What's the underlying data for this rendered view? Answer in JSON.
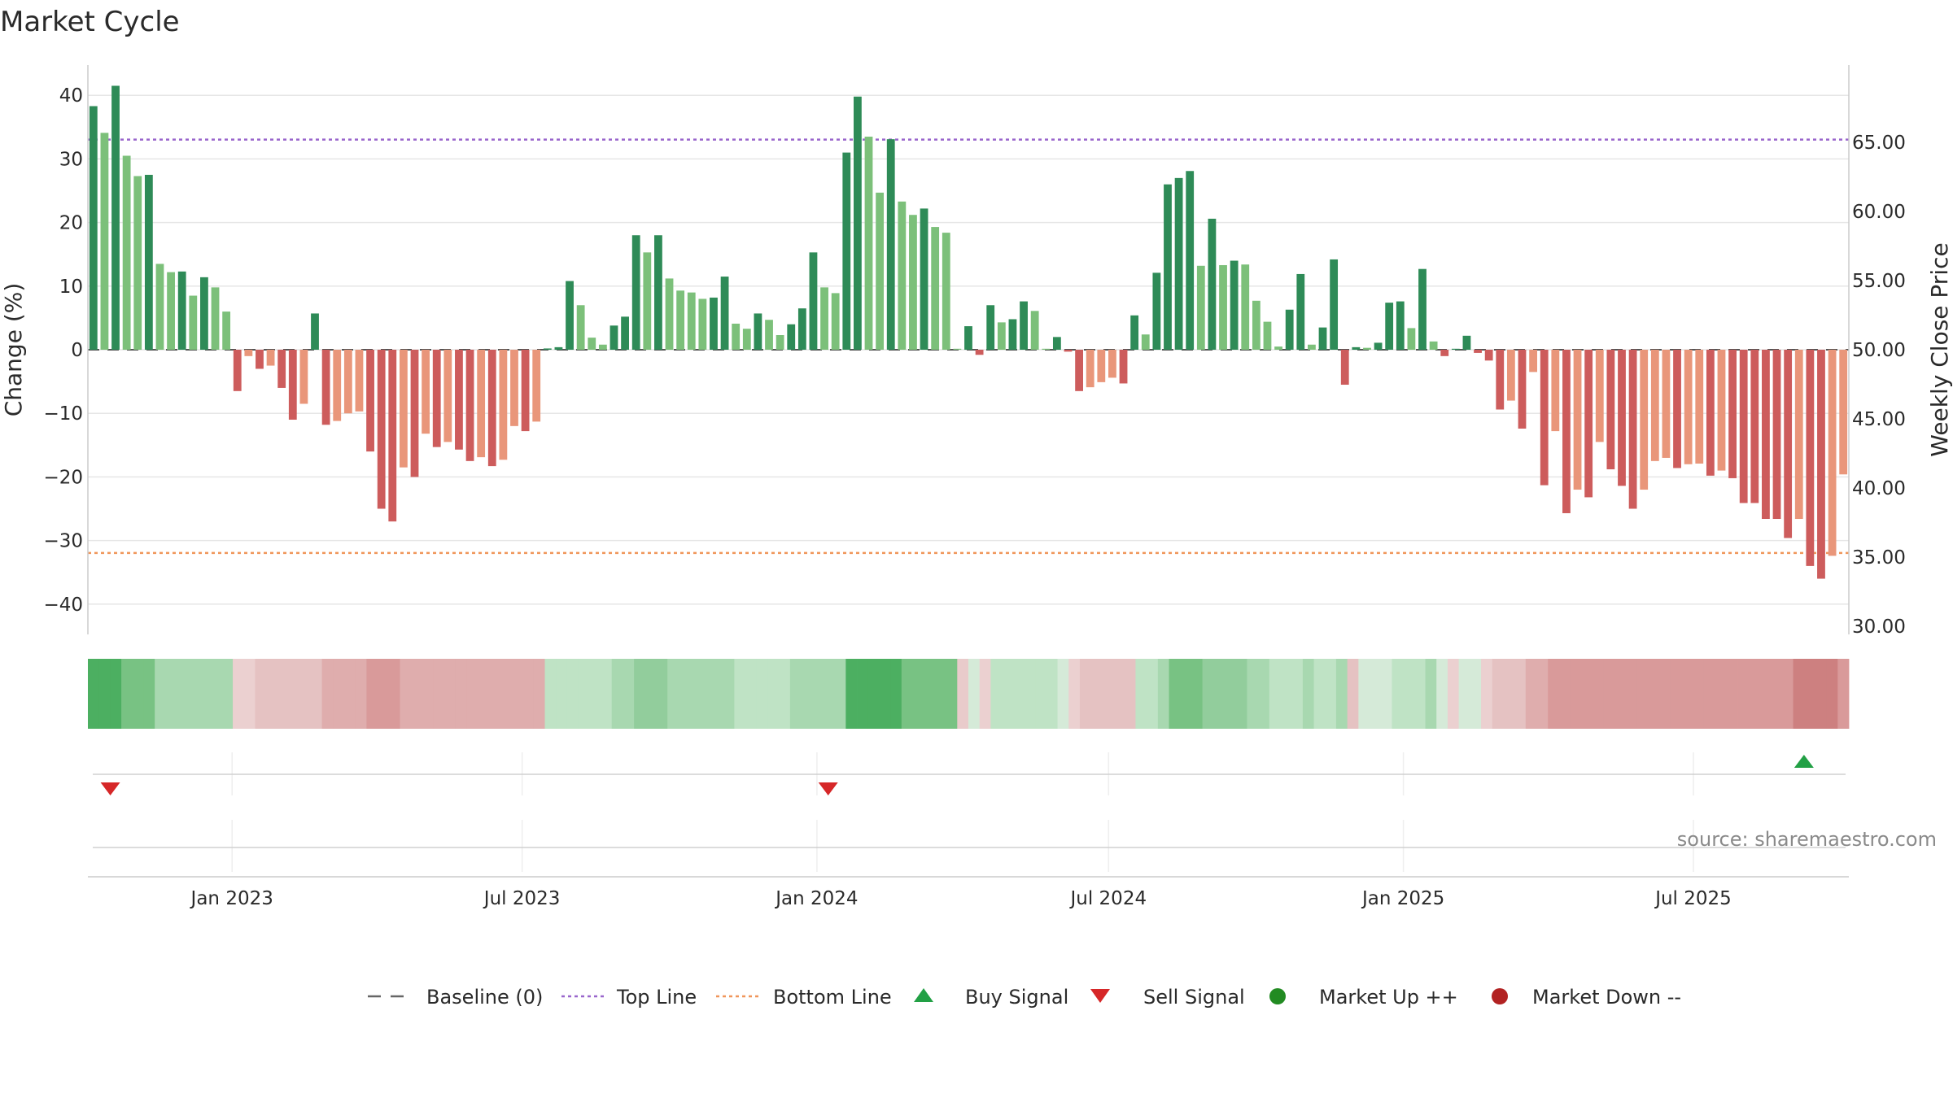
{
  "chart_data": {
    "type": "bar",
    "title": "Market Cycle",
    "ylabel": "Change (%)",
    "y2label": "Weekly Close Price",
    "ylim": [
      -45,
      45
    ],
    "y_ticks": [
      40,
      30,
      20,
      10,
      0,
      -10,
      -20,
      -30,
      -40
    ],
    "y_tick_labels": [
      "40",
      "30",
      "20",
      "10",
      "0",
      "−10",
      "−20",
      "−30",
      "−40"
    ],
    "y2lim": [
      28.0,
      68.5
    ],
    "y2_ticks": [
      65.0,
      60.0,
      55.0,
      50.0,
      45.0,
      40.0,
      35.0,
      30.0
    ],
    "y2_tick_labels": [
      "65.00",
      "60.00",
      "55.00",
      "50.00",
      "45.00",
      "40.00",
      "35.00",
      "30.00"
    ],
    "top_line": 65.2,
    "bottom_line": 35.3,
    "x_start": "2022-10-03",
    "x_end": "2025-10-06",
    "x_tick_dates": [
      "2023-01-01",
      "2023-07-01",
      "2024-01-01",
      "2024-07-01",
      "2025-01-01",
      "2025-07-01"
    ],
    "x_tick_labels": [
      "Jan 2023",
      "Jul 2023",
      "Jan 2024",
      "Jul 2024",
      "Jan 2025",
      "Jul 2025"
    ],
    "grid": true,
    "legend_position": "bottom",
    "source": "source: sharemaestro.com",
    "series": [
      {
        "name": "Change (%)",
        "values": [
          38.3,
          34.1,
          41.5,
          30.5,
          27.3,
          27.5,
          13.5,
          12.2,
          12.3,
          8.5,
          11.4,
          9.8,
          6.0,
          -6.5,
          -1.0,
          -3.0,
          -2.5,
          -6.0,
          -11.0,
          -8.5,
          5.7,
          -11.8,
          -11.2,
          -10.0,
          -9.7,
          -16.0,
          -25.0,
          -27.0,
          -18.5,
          -20.0,
          -13.2,
          -15.3,
          -14.5,
          -15.7,
          -17.5,
          -16.9,
          -18.3,
          -17.3,
          -12.0,
          -12.8,
          -11.3,
          0.2,
          0.4,
          10.8,
          7.0,
          1.9,
          0.8,
          3.8,
          5.2,
          18.0,
          15.3,
          18.0,
          11.2,
          9.3,
          9.0,
          8.0,
          8.2,
          11.5,
          4.1,
          3.3,
          5.7,
          4.7,
          2.3,
          4.0,
          6.5,
          15.3,
          9.8,
          8.9,
          31.0,
          39.8,
          33.5,
          24.7,
          33.1,
          23.3,
          21.2,
          22.2,
          19.3,
          18.4,
          0.0,
          3.7,
          -0.8,
          7.0,
          4.3,
          4.8,
          7.6,
          6.1,
          0.0,
          2.0,
          -0.3,
          -6.5,
          -5.9,
          -5.1,
          -4.4,
          -5.3,
          5.4,
          2.4,
          12.1,
          26.0,
          27.0,
          28.1,
          13.2,
          20.6,
          13.3,
          14.0,
          13.4,
          7.7,
          4.4,
          0.5,
          6.3,
          11.9,
          0.8,
          3.5,
          14.2,
          -5.5,
          0.4,
          0.3,
          1.1,
          7.4,
          7.6,
          3.4,
          12.7,
          1.3,
          -1.0,
          0.0,
          2.2,
          -0.5,
          -1.7,
          -9.4,
          -8.0,
          -12.4,
          -3.5,
          -21.3,
          -12.8,
          -25.7,
          -22.0,
          -23.2,
          -14.5,
          -18.8,
          -21.4,
          -25.0,
          -22.0,
          -17.5,
          -17.0,
          -18.6,
          -18.0,
          -17.9,
          -19.8,
          -19.0,
          -20.2,
          -24.1,
          -24.1,
          -26.6,
          -26.6,
          -29.6,
          -26.6,
          -34.0,
          -36.0,
          -32.4,
          -19.6
        ]
      }
    ],
    "heat_strip": [
      "#4caf61",
      "#4caf61",
      "#4caf61",
      "#78c283",
      "#78c283",
      "#78c283",
      "#a8d8b0",
      "#a8d8b0",
      "#a8d8b0",
      "#a8d8b0",
      "#a8d8b0",
      "#a8d8b0",
      "#a8d8b0",
      "#ebd0d0",
      "#ebd0d0",
      "#e5c2c2",
      "#e5c2c2",
      "#e5c2c2",
      "#e5c2c2",
      "#e5c2c2",
      "#e5c2c2",
      "#dfadad",
      "#dfadad",
      "#dfadad",
      "#dfadad",
      "#d99a9a",
      "#d99a9a",
      "#d99a9a",
      "#dfadad",
      "#dfadad",
      "#dfadad",
      "#dfadad",
      "#dfadad",
      "#dfadad",
      "#dfadad",
      "#dfadad",
      "#dfadad",
      "#dfadad",
      "#dfadad",
      "#dfadad",
      "#dfadad",
      "#bfe3c5",
      "#bfe3c5",
      "#bfe3c5",
      "#bfe3c5",
      "#bfe3c5",
      "#bfe3c5",
      "#a8d8b0",
      "#a8d8b0",
      "#92cd9c",
      "#92cd9c",
      "#92cd9c",
      "#a8d8b0",
      "#a8d8b0",
      "#a8d8b0",
      "#a8d8b0",
      "#a8d8b0",
      "#a8d8b0",
      "#bfe3c5",
      "#bfe3c5",
      "#bfe3c5",
      "#bfe3c5",
      "#bfe3c5",
      "#a8d8b0",
      "#a8d8b0",
      "#a8d8b0",
      "#a8d8b0",
      "#a8d8b0",
      "#4caf61",
      "#4caf61",
      "#4caf61",
      "#4caf61",
      "#4caf61",
      "#78c283",
      "#78c283",
      "#78c283",
      "#78c283",
      "#78c283",
      "#e9cbcb",
      "#d5ead8",
      "#ebd0d0",
      "#bfe3c5",
      "#bfe3c5",
      "#bfe3c5",
      "#bfe3c5",
      "#bfe3c5",
      "#bfe3c5",
      "#d5ead8",
      "#ebd0d0",
      "#e5c2c2",
      "#e5c2c2",
      "#e5c2c2",
      "#e5c2c2",
      "#e5c2c2",
      "#bfe3c5",
      "#bfe3c5",
      "#a8d8b0",
      "#78c283",
      "#78c283",
      "#78c283",
      "#92cd9c",
      "#92cd9c",
      "#92cd9c",
      "#92cd9c",
      "#a8d8b0",
      "#a8d8b0",
      "#bfe3c5",
      "#bfe3c5",
      "#bfe3c5",
      "#a8d8b0",
      "#bfe3c5",
      "#bfe3c5",
      "#a8d8b0",
      "#e5c2c2",
      "#d5ead8",
      "#d5ead8",
      "#d5ead8",
      "#bfe3c5",
      "#bfe3c5",
      "#bfe3c5",
      "#a8d8b0",
      "#d5ead8",
      "#ebd0d0",
      "#d5ead8",
      "#d5ead8",
      "#ebd0d0",
      "#e5c2c2",
      "#e5c2c2",
      "#e5c2c2",
      "#dfadad",
      "#dfadad",
      "#d99a9a",
      "#d99a9a",
      "#d99a9a",
      "#d99a9a",
      "#d99a9a",
      "#d99a9a",
      "#d99a9a",
      "#d99a9a",
      "#d99a9a",
      "#d99a9a",
      "#d99a9a",
      "#d99a9a",
      "#d99a9a",
      "#d99a9a",
      "#d99a9a",
      "#d99a9a",
      "#d99a9a",
      "#d99a9a",
      "#d99a9a",
      "#d99a9a",
      "#d99a9a",
      "#d99a9a",
      "#cd8080",
      "#cd8080",
      "#cd8080",
      "#cd8080",
      "#d99a9a"
    ],
    "buy_signals": [
      "2025-09-08"
    ],
    "sell_signals": [
      "2022-10-17",
      "2024-01-08"
    ]
  },
  "colors": {
    "up_strong": "#2e8b57",
    "up_weak": "#7cc07a",
    "down_strong": "#cd5c5c",
    "down_weak": "#e9967a",
    "top_line": "#9966cc",
    "bottom_line": "#f0965a",
    "buy": "#22a045",
    "sell": "#d62728",
    "market_up": "#228b22",
    "market_down": "#b22222"
  },
  "legend": [
    {
      "label": "Baseline (0)",
      "icon": "baseline-dash"
    },
    {
      "label": "Top Line",
      "icon": "top-line-dots"
    },
    {
      "label": "Bottom Line",
      "icon": "bottom-line-dots"
    },
    {
      "label": "Buy Signal",
      "icon": "triangle-up"
    },
    {
      "label": "Sell Signal",
      "icon": "triangle-down"
    },
    {
      "label": "Market Up ++",
      "icon": "circle-green"
    },
    {
      "label": "Market Down --",
      "icon": "circle-red"
    }
  ]
}
